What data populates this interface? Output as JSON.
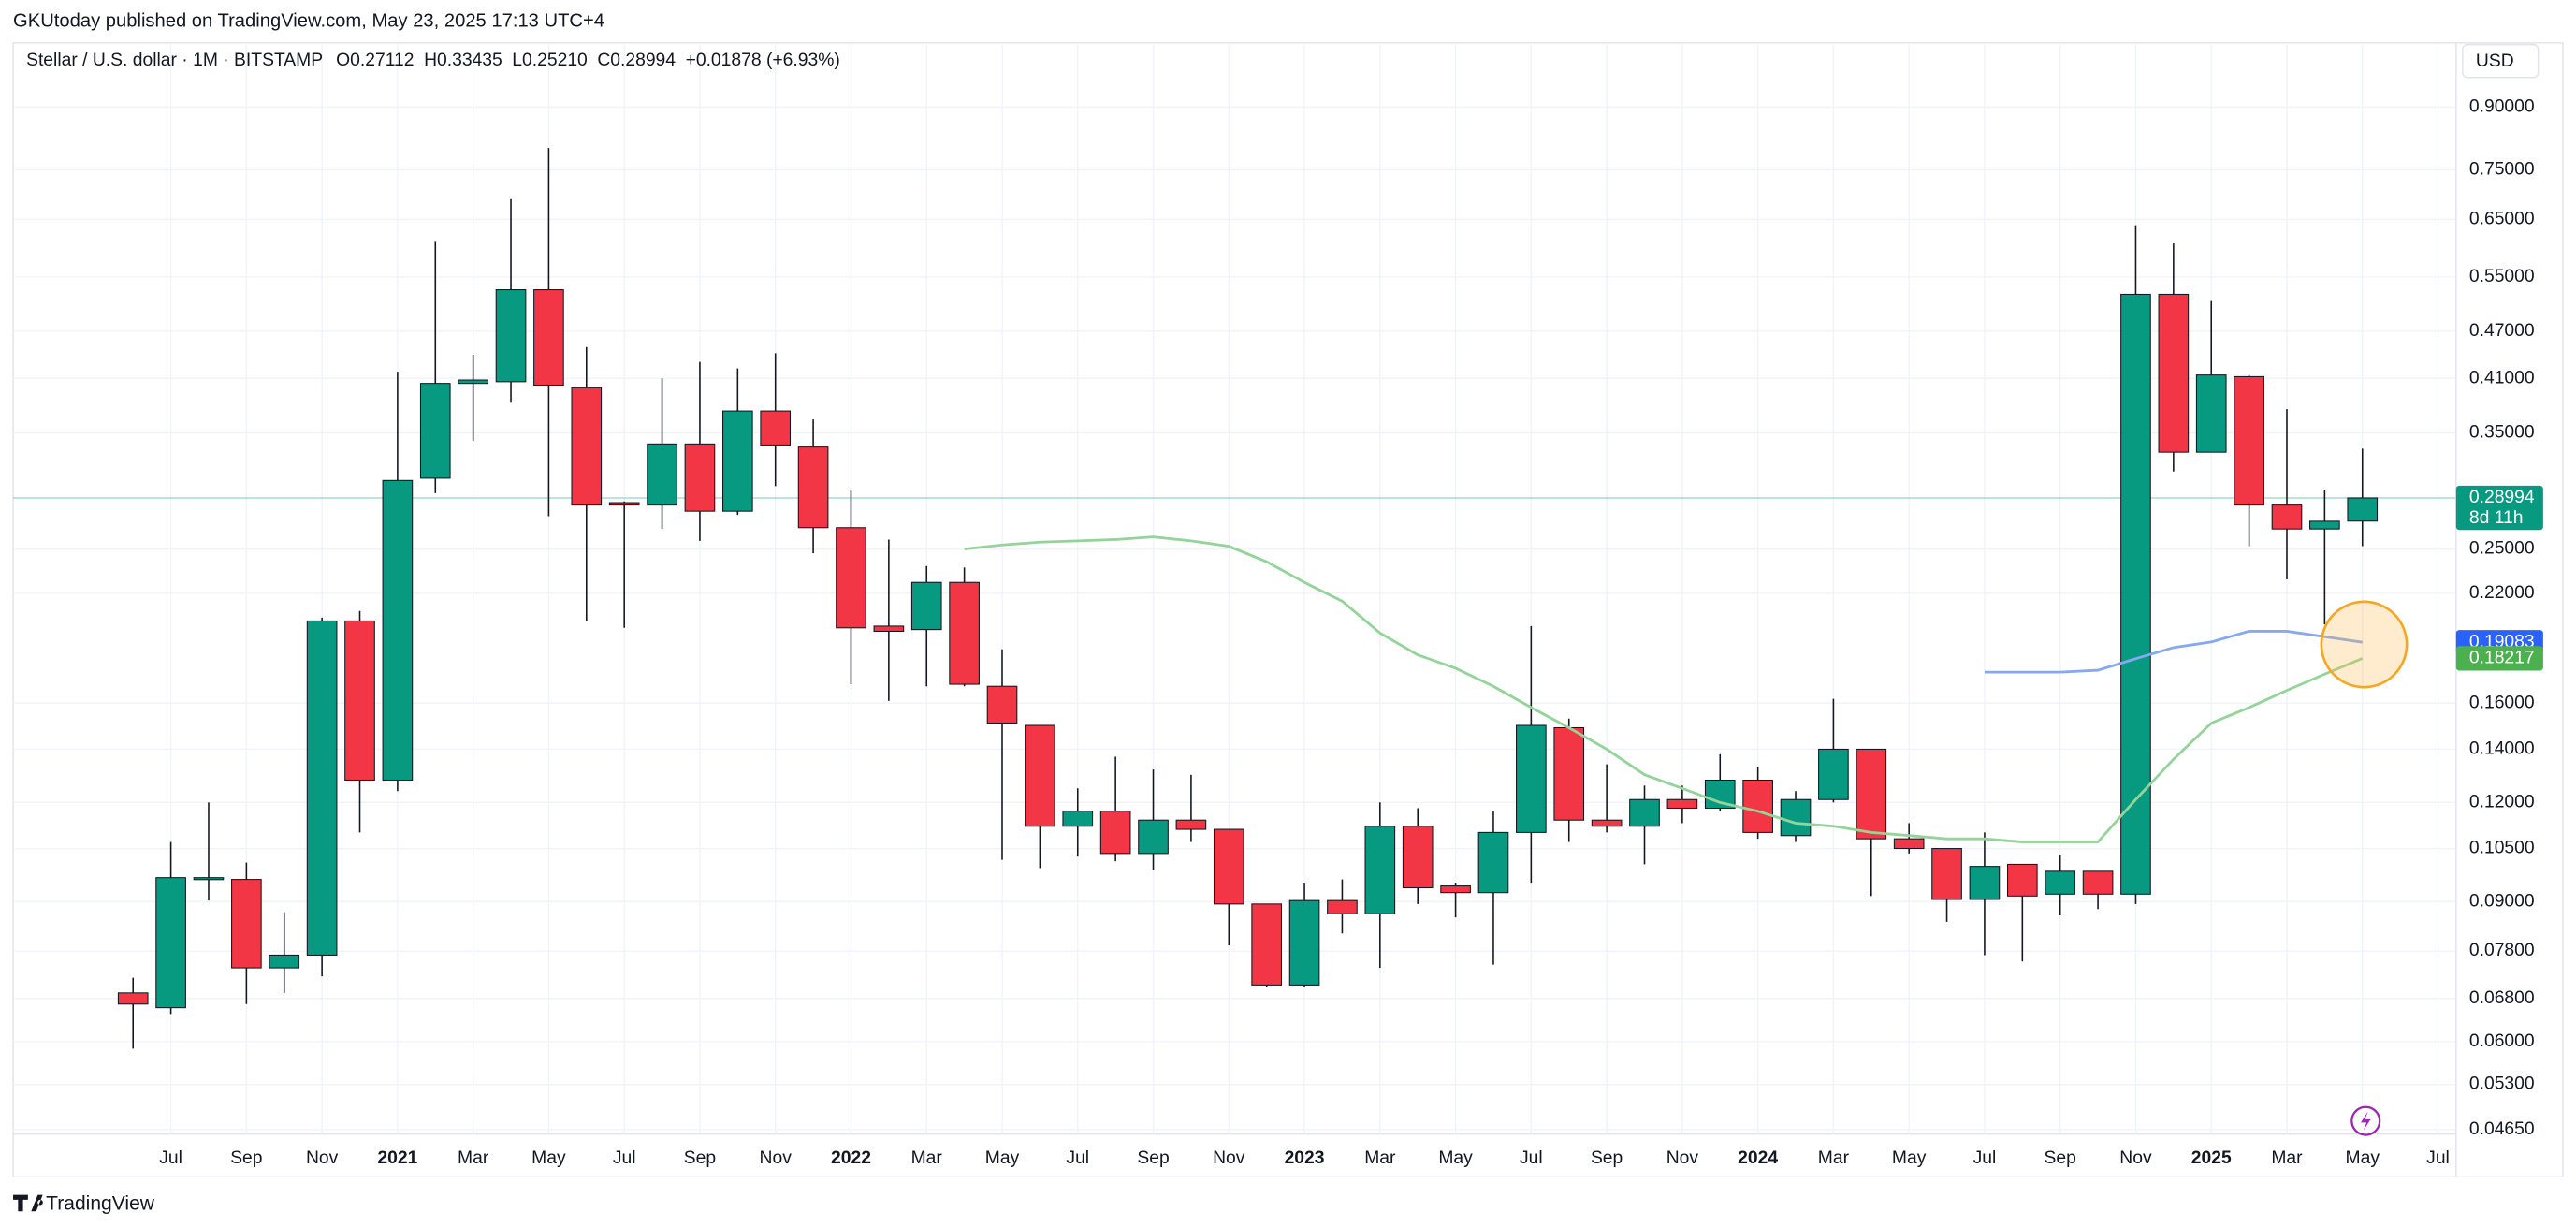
{
  "chart_data": {
    "type": "candlestick",
    "header": "GKUtoday published on TradingView.com, May 23, 2025 17:13 UTC+4",
    "symbol": "Stellar / U.S. dollar · 1M · BITSTAMP",
    "legend_items": [
      "O0.27112",
      "H0.33435",
      "L0.25210",
      "C0.28994",
      "+0.01878 (+6.93%)"
    ],
    "currency": "USD",
    "brand": "TradingView",
    "categories": [
      null,
      "Jul",
      null,
      "Sep",
      null,
      "Nov",
      null,
      "2021",
      null,
      "Mar",
      null,
      "May",
      null,
      "Jul",
      null,
      "Sep",
      null,
      "Nov",
      null,
      "2022",
      null,
      "Mar",
      null,
      "May",
      null,
      "Jul",
      null,
      "Sep",
      null,
      "Nov",
      null,
      "2023",
      null,
      "Mar",
      null,
      "May",
      null,
      "Jul",
      null,
      "Sep",
      null,
      "Nov",
      null,
      "2024",
      null,
      "Mar",
      null,
      "May",
      null,
      "Jul",
      null,
      "Sep",
      null,
      "Nov",
      null,
      "2025",
      null,
      "Mar",
      null,
      "May",
      null,
      "Jul"
    ],
    "open": [
      0.0691,
      0.0662,
      0.0962,
      0.096,
      0.0743,
      0.0771,
      0.203,
      0.128,
      0.307,
      0.404,
      0.406,
      0.53,
      0.399,
      0.286,
      0.284,
      0.339,
      0.279,
      0.373,
      0.336,
      0.266,
      0.2,
      0.198,
      0.227,
      0.168,
      0.15,
      0.112,
      0.117,
      0.1035,
      0.114,
      0.111,
      0.0894,
      0.0707,
      0.0903,
      0.0869,
      0.112,
      0.0942,
      0.0924,
      0.11,
      0.149,
      0.114,
      0.112,
      0.121,
      0.118,
      0.128,
      0.109,
      0.121,
      0.14,
      0.108,
      0.105,
      0.0906,
      0.1003,
      0.092,
      0.0983,
      0.092,
      0.523,
      0.331,
      0.412,
      0.284,
      0.265,
      0.27112,
      null,
      null
    ],
    "high": [
      0.0722,
      0.107,
      0.12,
      0.1008,
      0.0873,
      0.205,
      0.209,
      0.418,
      0.609,
      0.439,
      0.689,
      0.799,
      0.449,
      0.287,
      0.41,
      0.43,
      0.422,
      0.441,
      0.364,
      0.297,
      0.257,
      0.238,
      0.237,
      0.187,
      0.15,
      0.125,
      0.137,
      0.132,
      0.13,
      0.111,
      0.0894,
      0.0951,
      0.096,
      0.12,
      0.118,
      0.0951,
      0.117,
      0.2,
      0.153,
      0.134,
      0.126,
      0.126,
      0.138,
      0.133,
      0.124,
      0.162,
      0.14,
      0.113,
      0.105,
      0.11,
      0.1003,
      0.103,
      0.0983,
      0.639,
      0.606,
      0.513,
      0.414,
      0.375,
      0.297,
      0.33435,
      null,
      null
    ],
    "low": [
      0.0588,
      0.065,
      0.0903,
      0.0669,
      0.0691,
      0.0725,
      0.11,
      0.124,
      0.294,
      0.342,
      0.382,
      0.275,
      0.203,
      0.199,
      0.265,
      0.256,
      0.276,
      0.3,
      0.247,
      0.169,
      0.161,
      0.168,
      0.168,
      0.1016,
      0.0992,
      0.1026,
      0.1012,
      0.0987,
      0.107,
      0.0793,
      0.0704,
      0.0704,
      0.0821,
      0.0743,
      0.0894,
      0.086,
      0.075,
      0.0951,
      0.107,
      0.11,
      0.1003,
      0.113,
      0.117,
      0.108,
      0.107,
      0.12,
      0.0915,
      0.1035,
      0.0849,
      0.0771,
      0.0757,
      0.0865,
      0.0881,
      0.0894,
      0.313,
      0.331,
      0.252,
      0.229,
      0.201,
      0.2521,
      null,
      null
    ],
    "close": [
      0.0669,
      0.0965,
      0.0965,
      0.0743,
      0.0771,
      0.203,
      0.128,
      0.305,
      0.404,
      0.408,
      0.53,
      0.402,
      0.284,
      0.284,
      0.339,
      0.279,
      0.373,
      0.338,
      0.266,
      0.199,
      0.197,
      0.227,
      0.169,
      0.151,
      0.112,
      0.117,
      0.1035,
      0.114,
      0.111,
      0.0894,
      0.0707,
      0.0903,
      0.0869,
      0.112,
      0.0937,
      0.0924,
      0.11,
      0.15,
      0.114,
      0.112,
      0.121,
      0.118,
      0.128,
      0.11,
      0.121,
      0.14,
      0.108,
      0.105,
      0.0906,
      0.0997,
      0.0915,
      0.0983,
      0.092,
      0.523,
      0.331,
      0.414,
      0.284,
      0.265,
      0.271,
      0.28994,
      null,
      null
    ],
    "up_color": "#089981",
    "down_color": "#f23645",
    "lines": [
      {
        "color": "#94d49a",
        "values": [
          null,
          null,
          null,
          null,
          null,
          null,
          null,
          null,
          null,
          null,
          null,
          null,
          null,
          null,
          null,
          null,
          null,
          null,
          null,
          null,
          null,
          null,
          0.25,
          0.253,
          0.255,
          0.256,
          0.257,
          0.259,
          0.256,
          0.252,
          0.241,
          0.227,
          0.215,
          0.196,
          0.184,
          0.177,
          0.168,
          0.158,
          0.149,
          0.14,
          0.13,
          0.125,
          0.12,
          0.117,
          0.113,
          0.112,
          0.11,
          0.109,
          0.108,
          0.108,
          0.107,
          0.107,
          0.107,
          0.121,
          0.136,
          0.151,
          0.158,
          0.166,
          0.174,
          0.18217,
          null,
          null
        ]
      },
      {
        "color": "#86a8f0",
        "values": [
          null,
          null,
          null,
          null,
          null,
          null,
          null,
          null,
          null,
          null,
          null,
          null,
          null,
          null,
          null,
          null,
          null,
          null,
          null,
          null,
          null,
          null,
          null,
          null,
          null,
          null,
          null,
          null,
          null,
          null,
          null,
          null,
          null,
          null,
          null,
          null,
          null,
          null,
          null,
          null,
          null,
          null,
          null,
          null,
          null,
          null,
          null,
          null,
          null,
          0.175,
          0.175,
          0.175,
          0.176,
          0.182,
          0.188,
          0.191,
          0.197,
          0.197,
          0.194,
          0.19083,
          null,
          null
        ]
      }
    ],
    "price_labels": [
      {
        "value": 0.28994,
        "countdown": "8d 11h",
        "color": "#089981"
      },
      {
        "value": 0.19083,
        "color": "#2962ff"
      },
      {
        "value": 0.18217,
        "color": "#4caf50"
      }
    ],
    "log_scale": true,
    "grid": true,
    "ylim": [
      0.0459,
      1.063
    ],
    "yticks": [
      {
        "value": 0.9,
        "label": "0.90000"
      },
      {
        "value": 0.75,
        "label": "0.75000"
      },
      {
        "value": 0.65,
        "label": "0.65000"
      },
      {
        "value": 0.55,
        "label": "0.55000"
      },
      {
        "value": 0.47,
        "label": "0.47000"
      },
      {
        "value": 0.41,
        "label": "0.41000"
      },
      {
        "value": 0.35,
        "label": "0.35000"
      },
      {
        "value": 0.25,
        "label": "0.25000"
      },
      {
        "value": 0.22,
        "label": "0.22000"
      },
      {
        "value": 0.16,
        "label": "0.16000"
      },
      {
        "value": 0.14,
        "label": "0.14000"
      },
      {
        "value": 0.12,
        "label": "0.12000"
      },
      {
        "value": 0.105,
        "label": "0.10500"
      },
      {
        "value": 0.09,
        "label": "0.09000"
      },
      {
        "value": 0.078,
        "label": "0.07800"
      },
      {
        "value": 0.068,
        "label": "0.06800"
      },
      {
        "value": 0.06,
        "label": "0.06000"
      },
      {
        "value": 0.053,
        "label": "0.05300"
      },
      {
        "value": 0.0465,
        "label": "0.04650"
      }
    ]
  }
}
